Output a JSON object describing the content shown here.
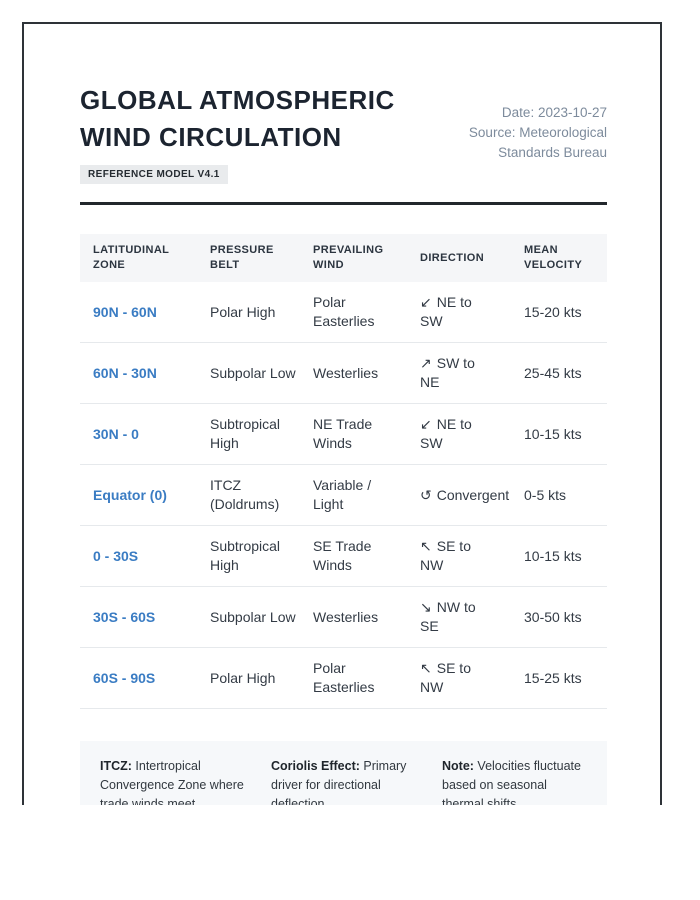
{
  "header": {
    "title": "GLOBAL ATMOSPHERIC WIND CIRCULATION",
    "badge": "REFERENCE MODEL V4.1",
    "meta": {
      "date": "Date: 2023-10-27",
      "source_line1": "Source: Meteorological",
      "source_line2": "Standards Bureau"
    }
  },
  "table": {
    "columns": [
      "Latitudinal Zone",
      "Pressure Belt",
      "Prevailing Wind",
      "Direction",
      "Mean Velocity"
    ],
    "rows": [
      {
        "zone": "90N - 60N",
        "pressure_belt": "Polar High",
        "prevailing_wind": "Polar Easterlies",
        "direction_arrow": "↙",
        "direction": "NE to SW",
        "velocity": "15-20 kts"
      },
      {
        "zone": "60N - 30N",
        "pressure_belt": "Subpolar Low",
        "prevailing_wind": "Westerlies",
        "direction_arrow": "↗",
        "direction": "SW to NE",
        "velocity": "25-45 kts"
      },
      {
        "zone": "30N - 0",
        "pressure_belt": "Subtropical High",
        "prevailing_wind": "NE Trade Winds",
        "direction_arrow": "↙",
        "direction": "NE to SW",
        "velocity": "10-15 kts"
      },
      {
        "zone": "Equator (0)",
        "pressure_belt": "ITCZ (Doldrums)",
        "prevailing_wind": "Variable / Light",
        "direction_arrow": "↺",
        "direction": "Convergent",
        "velocity": "0-5 kts"
      },
      {
        "zone": "0 - 30S",
        "pressure_belt": "Subtropical High",
        "prevailing_wind": "SE Trade Winds",
        "direction_arrow": "↖",
        "direction": "SE to NW",
        "velocity": "10-15 kts"
      },
      {
        "zone": "30S - 60S",
        "pressure_belt": "Subpolar Low",
        "prevailing_wind": "Westerlies",
        "direction_arrow": "↘",
        "direction": "NW to SE",
        "velocity": "30-50 kts"
      },
      {
        "zone": "60S - 90S",
        "pressure_belt": "Polar High",
        "prevailing_wind": "Polar Easterlies",
        "direction_arrow": "↖",
        "direction": "SE to NW",
        "velocity": "15-25 kts"
      }
    ]
  },
  "footnotes": [
    {
      "label": "ITCZ:",
      "text": " Intertropical Convergence Zone where trade winds meet."
    },
    {
      "label": "Coriolis Effect:",
      "text": " Primary driver for directional deflection."
    },
    {
      "label": "Note:",
      "text": " Velocities fluctuate based on seasonal thermal shifts."
    }
  ],
  "colors": {
    "accent_blue": "#3a7cc3",
    "page_border": "#2e3338",
    "table_header_bg": "#f5f6f8",
    "notes_bg": "#f6f8fa",
    "meta_gray": "#7d8b9c"
  }
}
